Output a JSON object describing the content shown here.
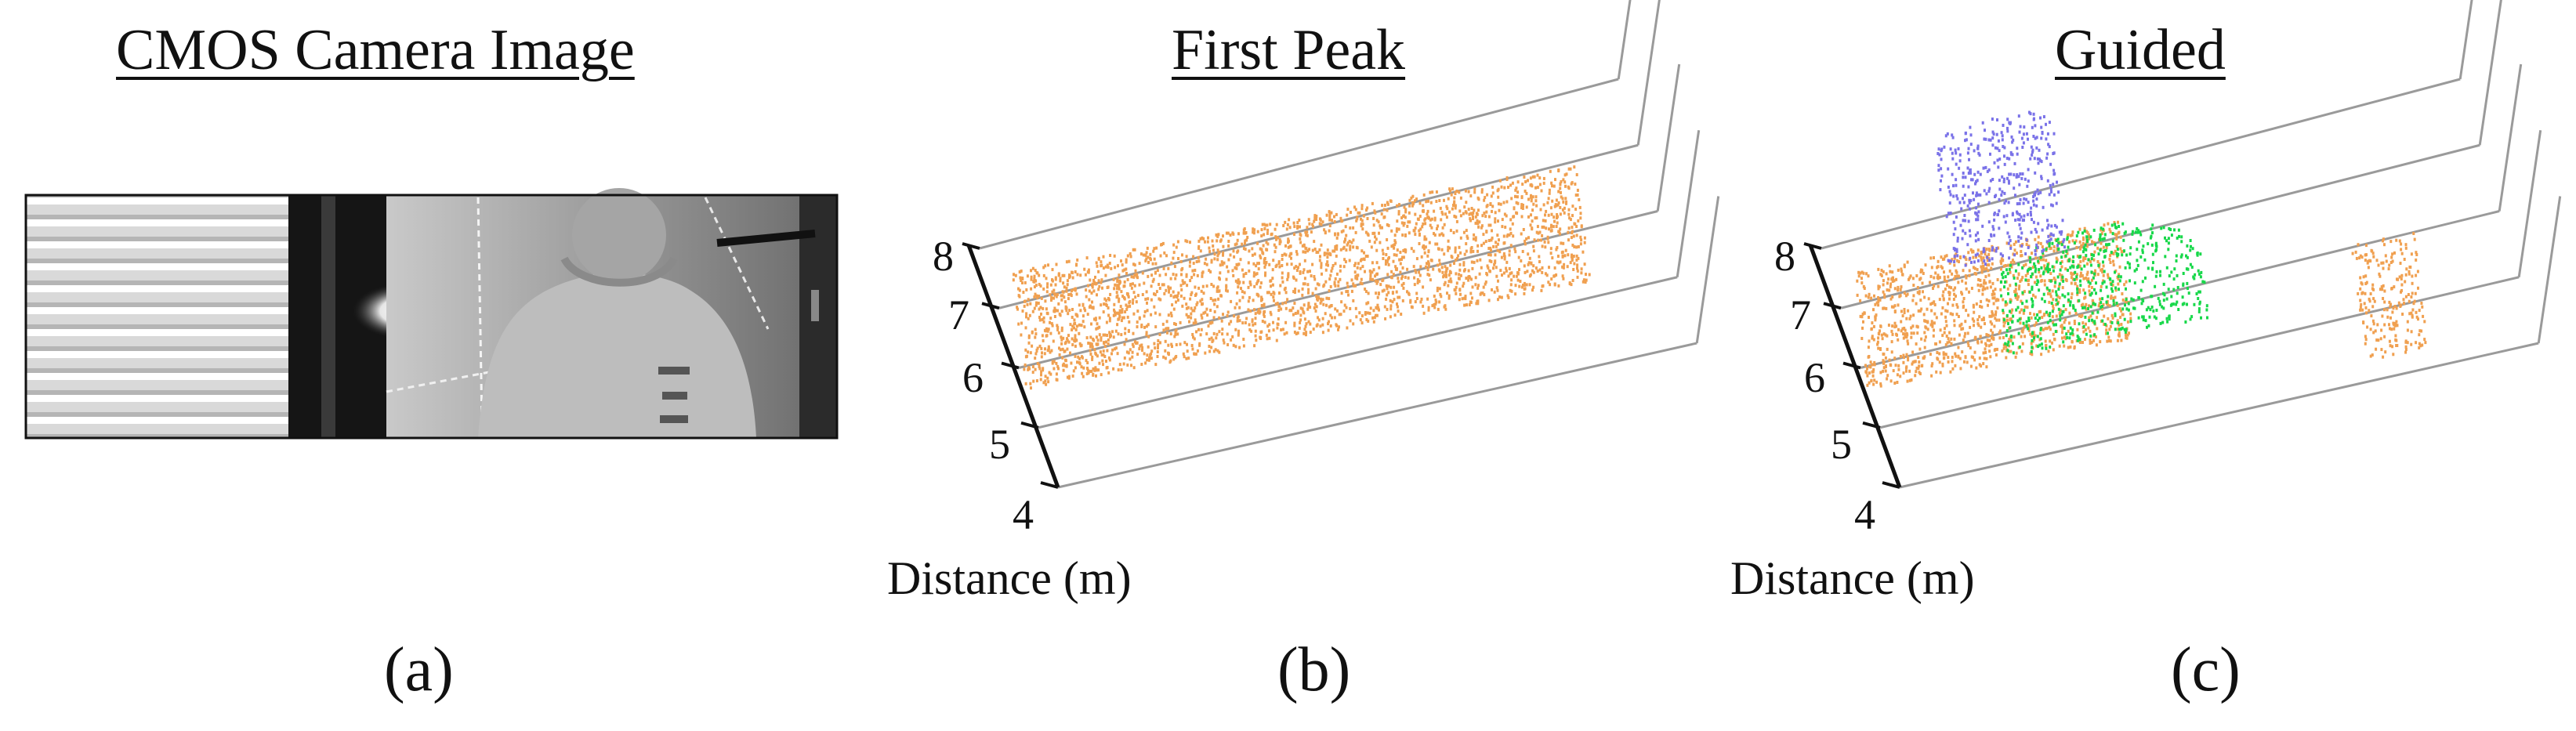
{
  "panels": [
    {
      "id": "a",
      "title": "CMOS Camera Image",
      "caption": "(a)"
    },
    {
      "id": "b",
      "title": "First Peak",
      "caption": "(b)"
    },
    {
      "id": "c",
      "title": "Guided",
      "caption": "(c)"
    }
  ],
  "chart_data": [
    {
      "type": "scatter",
      "title": "First Peak",
      "zlabel": "Distance (m)",
      "zticks": [
        "4",
        "5",
        "6",
        "7",
        "8"
      ],
      "zlim": [
        4,
        8
      ],
      "series": [
        {
          "color": "#f0a050",
          "approx_distance_m": 5.6,
          "extent": "full field of view"
        }
      ]
    },
    {
      "type": "scatter",
      "title": "Guided",
      "zlabel": "Distance (m)",
      "zticks": [
        "4",
        "5",
        "6",
        "7",
        "8"
      ],
      "zlim": [
        4,
        8
      ],
      "series": [
        {
          "color": "#f0a050",
          "approx_distance_m": 5.6,
          "extent": "left wall region and right strip"
        },
        {
          "color": "#18d84a",
          "approx_distance_m": 6.6,
          "extent": "person region"
        },
        {
          "color": "#7a72e8",
          "approx_distance_m": 8.3,
          "extent": "upper left background"
        }
      ]
    }
  ]
}
